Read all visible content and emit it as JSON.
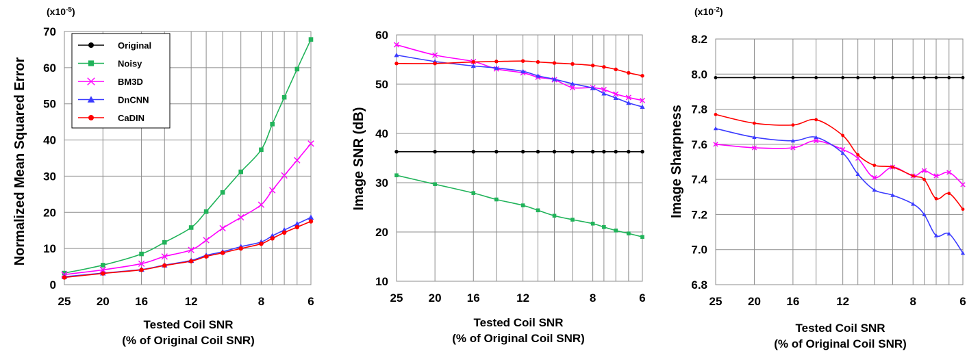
{
  "legend_entries": [
    {
      "name": "Original",
      "color": "#000000",
      "marker": "circle"
    },
    {
      "name": "Noisy",
      "color": "#21b35a",
      "marker": "square"
    },
    {
      "name": "BM3D",
      "color": "#ff00ff",
      "marker": "x"
    },
    {
      "name": "DnCNN",
      "color": "#3b3bff",
      "marker": "triangle"
    },
    {
      "name": "CaDIN",
      "color": "#ff0000",
      "marker": "circle"
    }
  ],
  "chart_data": [
    {
      "type": "line",
      "ylabel": "Normalized Mean Squared Error",
      "multiplier": "(x10",
      "multiplier_exp": "-5",
      "multiplier_close": ")",
      "xlabel_line1": "Tested Coil SNR",
      "xlabel_line2": "(% of Original Coil SNR)",
      "ylim": [
        0,
        70
      ],
      "yticks": [
        0,
        10,
        20,
        30,
        40,
        50,
        60,
        70
      ],
      "yticklabels": [
        "0",
        "10",
        "20",
        "30",
        "40",
        "50",
        "60",
        "70"
      ],
      "xlim": [
        25,
        6
      ],
      "xticks": [
        25,
        20,
        16,
        12,
        8,
        6
      ],
      "xticklabels": [
        "25",
        "20",
        "16",
        "12",
        "8",
        "6"
      ],
      "xgrid": [
        25,
        20,
        16,
        14,
        12,
        11,
        10,
        9,
        8,
        7.5,
        7,
        6.5,
        6
      ],
      "x": [
        25,
        20,
        16,
        14,
        12,
        11,
        10,
        9,
        8,
        7.5,
        7,
        6.5,
        6
      ],
      "series": [
        {
          "name": "Noisy",
          "values": [
            3.2,
            5.4,
            8.5,
            11.7,
            15.8,
            20.2,
            25.5,
            31.2,
            37.3,
            44.4,
            51.8,
            59.6,
            67.8
          ]
        },
        {
          "name": "BM3D",
          "values": [
            2.8,
            4.1,
            5.8,
            7.8,
            9.6,
            12.3,
            15.6,
            18.6,
            22.1,
            26.1,
            30.2,
            34.4,
            39.0
          ]
        },
        {
          "name": "DnCNN",
          "values": [
            2.2,
            3.2,
            4.2,
            5.4,
            6.7,
            8.1,
            9.1,
            10.5,
            11.8,
            13.5,
            15.1,
            16.8,
            18.6
          ]
        },
        {
          "name": "CaDIN",
          "values": [
            2.0,
            3.1,
            4.1,
            5.3,
            6.5,
            7.8,
            8.8,
            10.0,
            11.3,
            12.8,
            14.4,
            15.9,
            17.5
          ]
        }
      ]
    },
    {
      "type": "line",
      "ylabel": "Image SNR (dB)",
      "xlabel_line1": "Tested Coil SNR",
      "xlabel_line2": "(% of Original Coil SNR)",
      "ylim": [
        10,
        60
      ],
      "yticks": [
        10,
        20,
        30,
        40,
        50,
        60
      ],
      "yticklabels": [
        "10",
        "20",
        "30",
        "40",
        "50",
        "60"
      ],
      "xlim": [
        25,
        6
      ],
      "xticks": [
        25,
        20,
        16,
        12,
        8,
        6
      ],
      "xticklabels": [
        "25",
        "20",
        "16",
        "12",
        "8",
        "6"
      ],
      "xgrid": [
        25,
        20,
        16,
        14,
        12,
        11,
        10,
        9,
        8,
        7.5,
        7,
        6.5,
        6
      ],
      "x": [
        25,
        20,
        16,
        14,
        12,
        11,
        10,
        9,
        8,
        7.5,
        7,
        6.5,
        6
      ],
      "series": [
        {
          "name": "Original",
          "values": [
            36.3,
            36.3,
            36.3,
            36.3,
            36.3,
            36.3,
            36.3,
            36.3,
            36.3,
            36.3,
            36.3,
            36.3,
            36.3
          ]
        },
        {
          "name": "Noisy",
          "values": [
            31.5,
            29.7,
            27.9,
            26.6,
            25.4,
            24.4,
            23.3,
            22.5,
            21.7,
            21.0,
            20.3,
            19.7,
            19.0
          ]
        },
        {
          "name": "BM3D",
          "values": [
            58.0,
            55.9,
            54.6,
            53.1,
            52.3,
            51.4,
            50.9,
            49.3,
            49.3,
            48.9,
            48.0,
            47.3,
            46.7
          ]
        },
        {
          "name": "DnCNN",
          "values": [
            55.9,
            54.6,
            53.7,
            53.3,
            52.6,
            51.7,
            51.0,
            50.1,
            49.2,
            48.1,
            47.2,
            46.2,
            45.4
          ]
        },
        {
          "name": "CaDIN",
          "values": [
            54.2,
            54.2,
            54.5,
            54.6,
            54.7,
            54.5,
            54.3,
            54.1,
            53.8,
            53.5,
            53.0,
            52.3,
            51.7
          ]
        }
      ]
    },
    {
      "type": "line",
      "ylabel": "Image Sharpness",
      "multiplier": "(x10",
      "multiplier_exp": "-2",
      "multiplier_close": ")",
      "xlabel_line1": "Tested Coil SNR",
      "xlabel_line2": "(% of Original Coil SNR)",
      "ylim": [
        6.8,
        8.2
      ],
      "yticks": [
        6.8,
        7.0,
        7.2,
        7.4,
        7.6,
        7.8,
        8.0,
        8.2
      ],
      "yticklabels": [
        "6.8",
        "7.0",
        "7.2",
        "7.4",
        "7.6",
        "7.8",
        "8.0",
        "8.2"
      ],
      "xlim": [
        25,
        6
      ],
      "xticks": [
        25,
        20,
        16,
        12,
        8,
        6
      ],
      "xticklabels": [
        "25",
        "20",
        "16",
        "12",
        "8",
        "6"
      ],
      "xgrid": [
        25,
        20,
        16,
        14,
        12,
        11,
        10,
        9,
        8,
        7.5,
        7,
        6.5,
        6
      ],
      "x": [
        25,
        20,
        16,
        14,
        12,
        11,
        10,
        9,
        8,
        7.5,
        7,
        6.5,
        6
      ],
      "series": [
        {
          "name": "Original",
          "values": [
            7.98,
            7.98,
            7.98,
            7.98,
            7.98,
            7.98,
            7.98,
            7.98,
            7.98,
            7.98,
            7.98,
            7.98,
            7.98
          ]
        },
        {
          "name": "BM3D",
          "values": [
            7.6,
            7.58,
            7.58,
            7.62,
            7.57,
            7.52,
            7.41,
            7.47,
            7.42,
            7.45,
            7.42,
            7.44,
            7.37
          ]
        },
        {
          "name": "DnCNN",
          "values": [
            7.69,
            7.64,
            7.62,
            7.64,
            7.55,
            7.43,
            7.34,
            7.31,
            7.26,
            7.2,
            7.08,
            7.09,
            6.98
          ]
        },
        {
          "name": "CaDIN",
          "values": [
            7.77,
            7.72,
            7.71,
            7.74,
            7.65,
            7.54,
            7.48,
            7.47,
            7.42,
            7.4,
            7.29,
            7.32,
            7.23
          ]
        }
      ]
    }
  ]
}
